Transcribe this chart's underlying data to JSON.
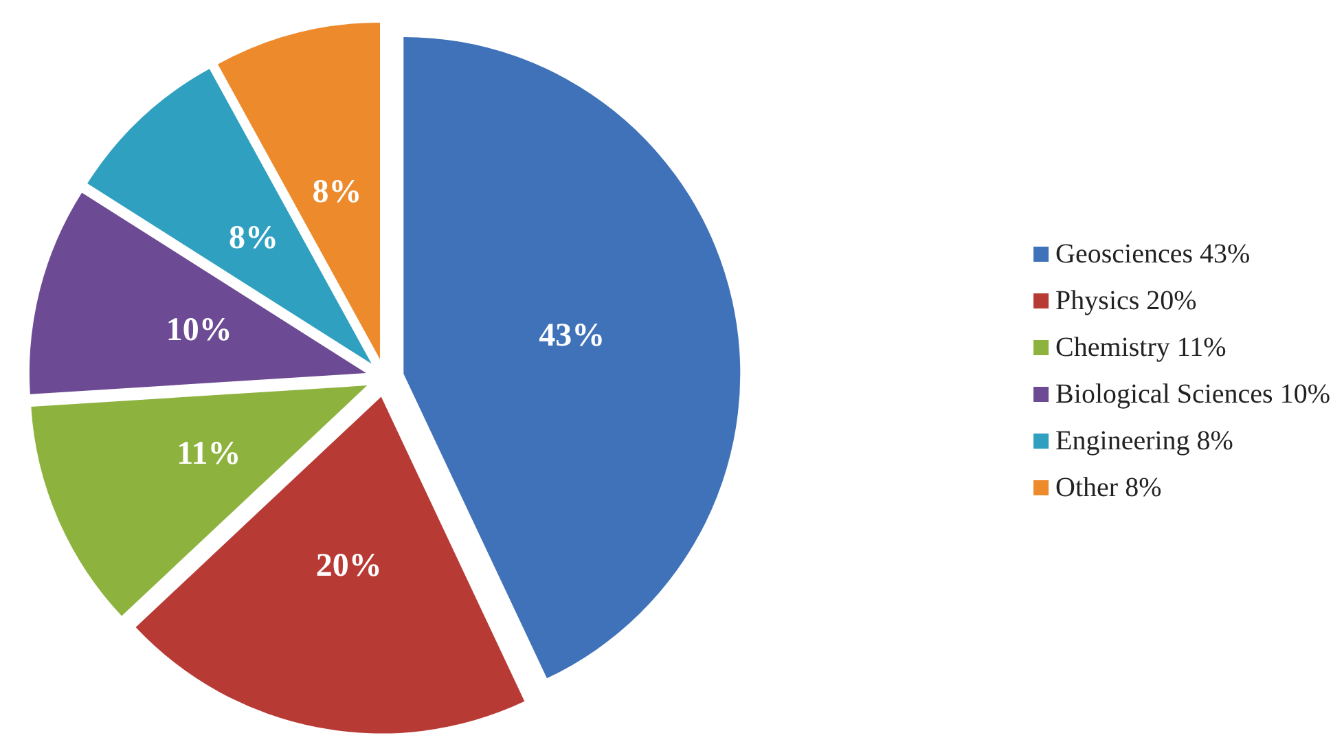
{
  "chart_data": {
    "type": "pie",
    "categories": [
      "Geosciences 43%",
      "Physics 20%",
      "Chemistry 11%",
      "Biological Sciences 10%",
      "Engineering 8%",
      "Other 8%"
    ],
    "values": [
      43,
      20,
      11,
      10,
      8,
      8
    ],
    "value_labels": [
      "43%",
      "20%",
      "11%",
      "10%",
      "8%",
      "8%"
    ],
    "colors": [
      "#3f72b8",
      "#b83a35",
      "#8db33e",
      "#6d4a94",
      "#30a0c0",
      "#ec8a2c"
    ],
    "legend": "right"
  }
}
